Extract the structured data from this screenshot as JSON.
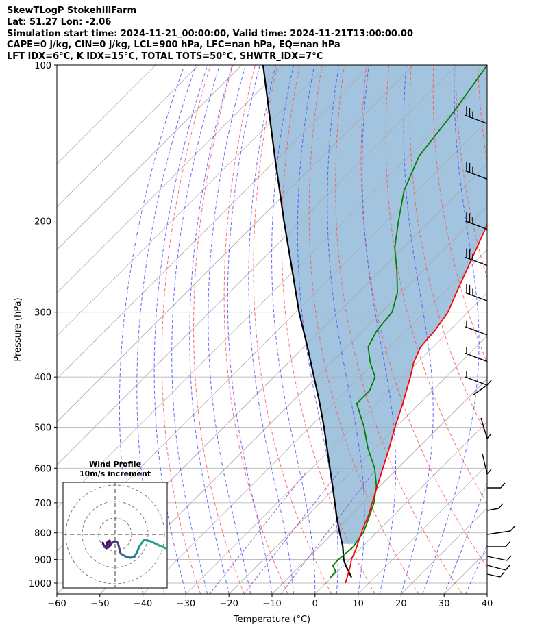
{
  "header": {
    "line1": "SkewTLogP StokehillFarm",
    "line2": "Lat: 51.27   Lon: -2.06",
    "line3": "Simulation start time: 2024-11-21_00:00:00, Valid time: 2024-11-21T13:00:00.00",
    "line4": "CAPE=0 j/kg, CIN=0 j/kg, LCL=900 hPa, LFC=nan hPa, EQ=nan hPa",
    "line5": "LFT IDX=6°C, K IDX=15°C, TOTAL TOTS=50°C, SHWTR_IDX=7°C"
  },
  "hodograph": {
    "title": "Wind Profile",
    "subtitle": "10m/s increment"
  },
  "chart_data": {
    "type": "line",
    "xlabel": "Temperature (°C)",
    "ylabel": "Pressure (hPa)",
    "xlim": [
      -60,
      40
    ],
    "ylim": [
      1050,
      100
    ],
    "y_scale": "log",
    "x_ticks": [
      -60,
      -50,
      -40,
      -30,
      -20,
      -10,
      0,
      10,
      20,
      30,
      40
    ],
    "x_tick_labels": [
      "−60",
      "−50",
      "−40",
      "−30",
      "−20",
      "−10",
      "0",
      "10",
      "20",
      "30",
      "40"
    ],
    "y_ticks": [
      1000,
      900,
      800,
      700,
      600,
      500,
      400,
      300,
      200,
      100
    ],
    "y_tick_labels": [
      "1000",
      "900",
      "800",
      "700",
      "600",
      "500",
      "400",
      "300",
      "200",
      "100"
    ],
    "grid": true,
    "colors": {
      "temperature": "#ff0000",
      "dewpoint": "#008000",
      "parcel": "#000000",
      "cape_shading": "#a2c4de",
      "dry_adiabats": "#ff5555",
      "moist_adiabats": "#4f4fff",
      "isotherms": "#aaaaaa",
      "mixing_ratio": "#9c5bd0"
    },
    "series": [
      {
        "key": "temperature",
        "points": [
          [
            1000,
            4.5
          ],
          [
            975,
            3.6
          ],
          [
            950,
            2.6
          ],
          [
            925,
            1.6
          ],
          [
            900,
            0.4
          ],
          [
            875,
            -0.4
          ],
          [
            850,
            -1.3
          ],
          [
            825,
            -2.4
          ],
          [
            800,
            -3.4
          ],
          [
            775,
            -4.5
          ],
          [
            750,
            -5.4
          ],
          [
            725,
            -6.6
          ],
          [
            700,
            -7.9
          ],
          [
            650,
            -10.6
          ],
          [
            600,
            -13.5
          ],
          [
            550,
            -16.6
          ],
          [
            500,
            -20.2
          ],
          [
            450,
            -23.9
          ],
          [
            400,
            -28.3
          ],
          [
            375,
            -30.9
          ],
          [
            350,
            -32.9
          ],
          [
            325,
            -33.4
          ],
          [
            300,
            -34.6
          ],
          [
            275,
            -37.2
          ],
          [
            250,
            -39.9
          ],
          [
            225,
            -42.9
          ],
          [
            200,
            -46.3
          ],
          [
            175,
            -49.7
          ],
          [
            150,
            -52.9
          ],
          [
            125,
            -55.9
          ],
          [
            100,
            -62.1
          ]
        ]
      },
      {
        "key": "dewpoint",
        "points": [
          [
            975,
            -0.3
          ],
          [
            950,
            -0.4
          ],
          [
            925,
            -2.5
          ],
          [
            900,
            -2.6
          ],
          [
            875,
            -2.3
          ],
          [
            850,
            -2.1
          ],
          [
            825,
            -2.6
          ],
          [
            800,
            -3.0
          ],
          [
            750,
            -5.1
          ],
          [
            700,
            -7.5
          ],
          [
            650,
            -10.8
          ],
          [
            600,
            -15.4
          ],
          [
            550,
            -21.5
          ],
          [
            500,
            -27.4
          ],
          [
            450,
            -34.6
          ],
          [
            425,
            -34.6
          ],
          [
            400,
            -36.5
          ],
          [
            375,
            -41.0
          ],
          [
            350,
            -45.1
          ],
          [
            325,
            -46.9
          ],
          [
            300,
            -47.6
          ],
          [
            275,
            -50.9
          ],
          [
            250,
            -56.0
          ],
          [
            225,
            -62.0
          ],
          [
            200,
            -67.3
          ],
          [
            175,
            -73.0
          ],
          [
            150,
            -77.6
          ],
          [
            125,
            -79.6
          ],
          [
            100,
            -82.9
          ]
        ]
      },
      {
        "key": "parcel",
        "points": [
          [
            975,
            4.6
          ],
          [
            950,
            2.6
          ],
          [
            925,
            0.5
          ],
          [
            900,
            -1.4
          ],
          [
            850,
            -4.6
          ],
          [
            800,
            -8.5
          ],
          [
            750,
            -12.5
          ],
          [
            700,
            -16.6
          ],
          [
            650,
            -21.0
          ],
          [
            600,
            -25.8
          ],
          [
            550,
            -31.0
          ],
          [
            500,
            -36.7
          ],
          [
            450,
            -43.2
          ],
          [
            400,
            -50.7
          ],
          [
            350,
            -59.2
          ],
          [
            300,
            -69.2
          ],
          [
            250,
            -80.3
          ],
          [
            200,
            -93.9
          ],
          [
            150,
            -111.1
          ],
          [
            100,
            -135.0
          ]
        ]
      }
    ],
    "hodograph": {
      "increment_ms": 10,
      "rings": 3
    }
  }
}
